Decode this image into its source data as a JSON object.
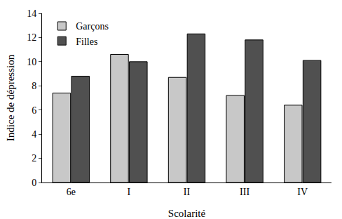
{
  "chart_data": {
    "type": "bar",
    "x_label": "Scolarité",
    "y_label": "Indice de dépression",
    "categories": [
      "6e",
      "I",
      "II",
      "III",
      "IV"
    ],
    "series": [
      {
        "name": "Garçons",
        "color": "#c8c8c8",
        "values": [
          7.4,
          10.6,
          8.7,
          7.2,
          6.4
        ]
      },
      {
        "name": "Filles",
        "color": "#505050",
        "values": [
          8.8,
          10.0,
          12.3,
          11.8,
          10.1
        ]
      }
    ],
    "ylim": [
      0,
      14
    ],
    "yticks": [
      0,
      2,
      4,
      6,
      8,
      10,
      12,
      14
    ],
    "grid": false,
    "legend": "top-left"
  }
}
